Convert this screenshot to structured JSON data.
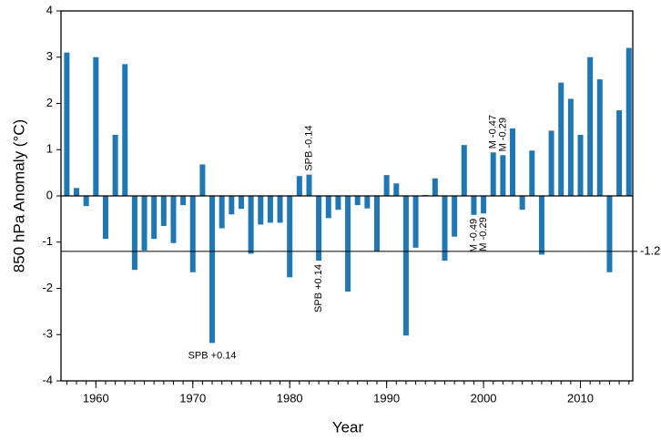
{
  "chart_data": {
    "type": "bar",
    "xlabel": "Year",
    "ylabel": "850 hPa Anomaly (°C)",
    "x": [
      1957,
      1958,
      1959,
      1960,
      1961,
      1962,
      1963,
      1964,
      1965,
      1966,
      1967,
      1968,
      1969,
      1970,
      1971,
      1972,
      1973,
      1974,
      1975,
      1976,
      1977,
      1978,
      1979,
      1980,
      1981,
      1982,
      1983,
      1984,
      1985,
      1986,
      1987,
      1988,
      1989,
      1990,
      1991,
      1992,
      1993,
      1994,
      1995,
      1996,
      1997,
      1998,
      1999,
      2000,
      2001,
      2002,
      2003,
      2004,
      2005,
      2006,
      2007,
      2008,
      2009,
      2010,
      2011,
      2012,
      2013,
      2014,
      2015
    ],
    "values": [
      3.1,
      0.17,
      -0.22,
      3.0,
      -0.93,
      1.32,
      2.85,
      -1.6,
      -1.18,
      -0.93,
      -0.65,
      -1.02,
      -0.2,
      -1.65,
      0.68,
      -3.18,
      -0.7,
      -0.4,
      -0.28,
      -1.25,
      -0.62,
      -0.58,
      -0.58,
      -1.76,
      0.43,
      0.46,
      -1.4,
      -0.48,
      -0.3,
      -2.07,
      -0.2,
      -0.27,
      -1.2,
      0.45,
      0.27,
      -3.02,
      -1.12,
      0.02,
      0.38,
      -1.4,
      -0.88,
      1.1,
      -0.41,
      -0.38,
      0.94,
      0.88,
      1.46,
      -0.3,
      0.98,
      -1.27,
      1.41,
      2.45,
      2.1,
      1.32,
      3.0,
      2.52,
      -1.65,
      1.85,
      3.2
    ],
    "color": "#1f77b4",
    "xlim": [
      1956.4,
      2015.4
    ],
    "xticks": [
      1960,
      1970,
      1980,
      1990,
      2000,
      2010
    ],
    "ylim": [
      -4,
      4
    ],
    "yticks": [
      -4,
      -3,
      -2,
      -1,
      0,
      1,
      2,
      3,
      4
    ],
    "reference_line": -1.2,
    "annotations": [
      {
        "text": "SPB +0.14",
        "year": 1972,
        "orientation": "horizontal"
      },
      {
        "text": "SPB -0.14",
        "year": 1982,
        "orientation": "vertical"
      },
      {
        "text": "SPB +0.14",
        "year": 1983,
        "orientation": "vertical"
      },
      {
        "text": "M -0.49",
        "year": 1999,
        "orientation": "vertical"
      },
      {
        "text": "M -0.29",
        "year": 2000,
        "orientation": "vertical"
      },
      {
        "text": "M -0.47",
        "year": 2001,
        "orientation": "vertical"
      },
      {
        "text": "M -0.29",
        "year": 2002,
        "orientation": "vertical"
      }
    ]
  }
}
